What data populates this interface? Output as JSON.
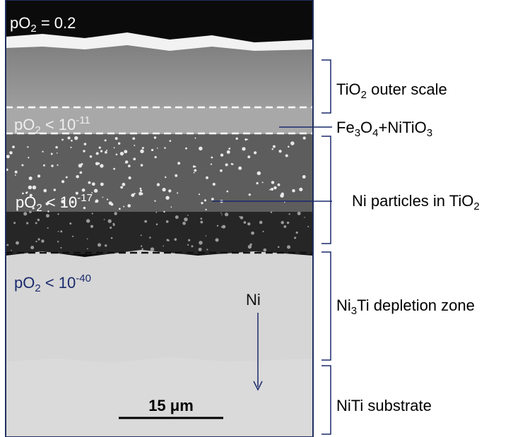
{
  "image_labels": [
    {
      "segments": [
        {
          "text": "pO"
        },
        {
          "sub": "2"
        },
        {
          "text": " = 0.2"
        }
      ]
    },
    {
      "segments": [
        {
          "text": "pO"
        },
        {
          "sub": "2"
        },
        {
          "text": " < 10"
        },
        {
          "sup": "-11"
        }
      ]
    },
    {
      "segments": [
        {
          "text": "pO"
        },
        {
          "sub": "2"
        },
        {
          "text": " < 10"
        },
        {
          "sup": "-17"
        }
      ]
    },
    {
      "segments": [
        {
          "text": "pO"
        },
        {
          "sub": "2"
        },
        {
          "text": " < 10"
        },
        {
          "sup": "-40"
        }
      ]
    },
    {
      "segments": [
        {
          "text": "Ni"
        }
      ]
    }
  ],
  "scale_bar": {
    "label": "15 μm"
  },
  "zones": [
    {
      "segments": [
        {
          "text": "TiO"
        },
        {
          "sub": "2"
        },
        {
          "text": "  outer scale"
        }
      ]
    },
    {
      "segments": [
        {
          "text": "Fe"
        },
        {
          "sub": "3"
        },
        {
          "text": "O"
        },
        {
          "sub": "4"
        },
        {
          "text": "+NiTiO"
        },
        {
          "sub": "3"
        }
      ]
    },
    {
      "segments": [
        {
          "text": "Ni particles in TiO"
        },
        {
          "sub": "2"
        }
      ]
    },
    {
      "segments": [
        {
          "text": "Ni"
        },
        {
          "sub": "3"
        },
        {
          "text": "Ti depletion zone"
        }
      ]
    },
    {
      "segments": [
        {
          "text": "NiTi substrate"
        }
      ]
    }
  ]
}
